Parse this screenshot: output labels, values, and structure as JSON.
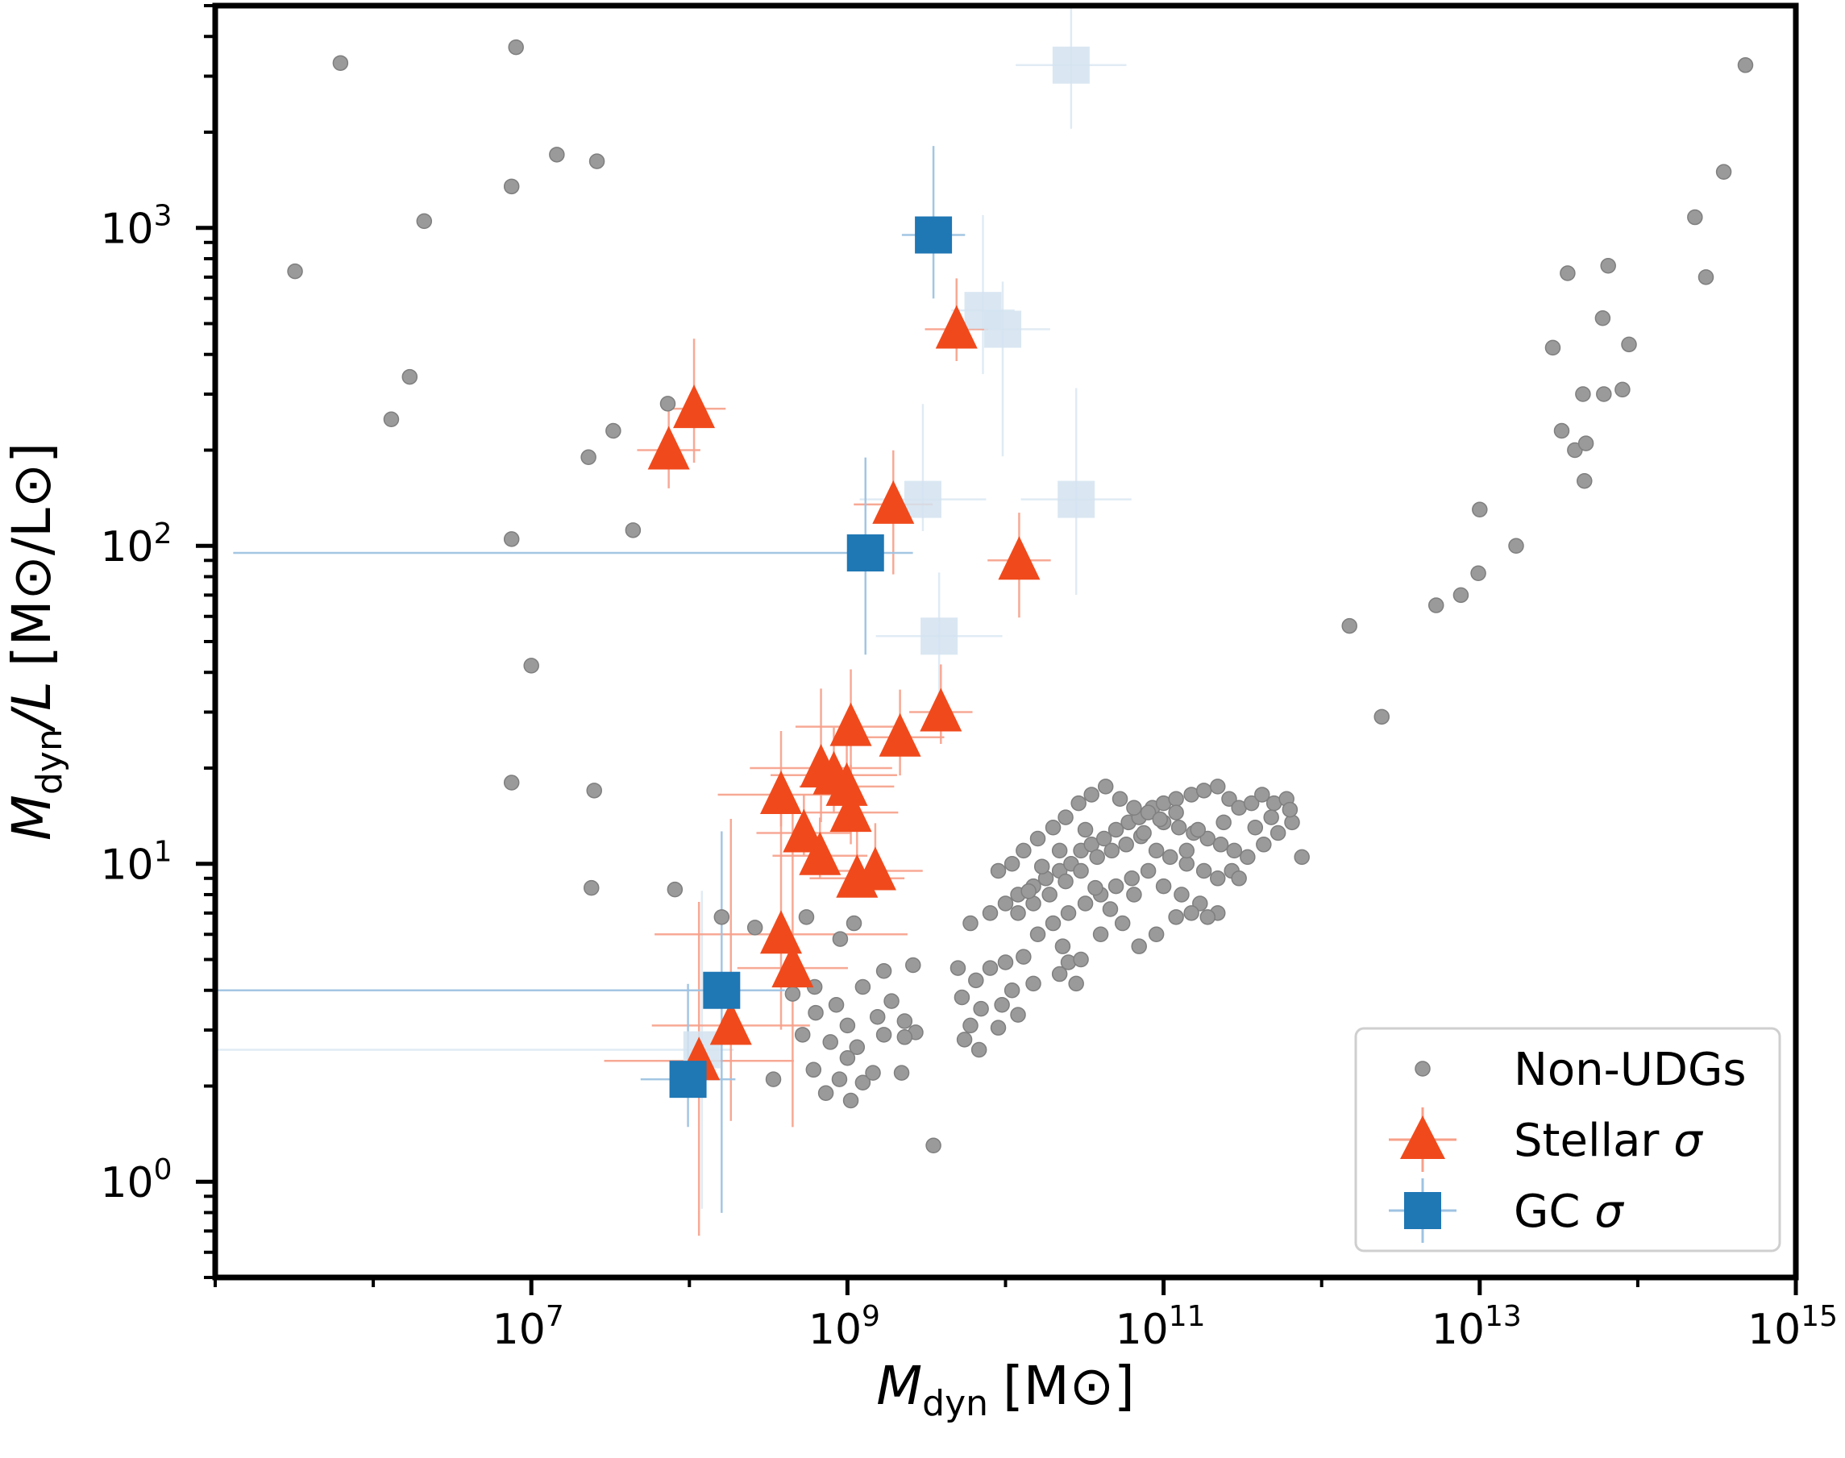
{
  "chart_data": {
    "type": "scatter",
    "xlabel_main": "M",
    "xlabel_sub": "dyn",
    "xlabel_unit": "[M",
    "xlabel_sun": "⊙",
    "xlabel_close": "]",
    "ylabel_main": "M",
    "ylabel_sub": "dyn",
    "ylabel_slash_l": "/L",
    "ylabel_unit": "[M",
    "ylabel_sun1": "⊙",
    "ylabel_mid": "/L",
    "ylabel_sun2": "⊙",
    "ylabel_close": "]",
    "x_scale": "log",
    "y_scale": "log",
    "xlim": [
      100000.0,
      1000000000000000.0
    ],
    "ylim": [
      0.5,
      5000
    ],
    "x_ticks": [
      {
        "value": 10000000.0,
        "base": "10",
        "exp": "7"
      },
      {
        "value": 1000000000.0,
        "base": "10",
        "exp": "9"
      },
      {
        "value": 100000000000.0,
        "base": "10",
        "exp": "11"
      },
      {
        "value": 10000000000000.0,
        "base": "10",
        "exp": "13"
      },
      {
        "value": 1000000000000000.0,
        "base": "10",
        "exp": "15"
      }
    ],
    "y_ticks": [
      {
        "value": 1,
        "base": "10",
        "exp": "0"
      },
      {
        "value": 10,
        "base": "10",
        "exp": "1"
      },
      {
        "value": 100,
        "base": "10",
        "exp": "2"
      },
      {
        "value": 1000,
        "base": "10",
        "exp": "3"
      }
    ],
    "legend_position": "bottom-right",
    "grid": false,
    "colors": {
      "non_udg": "#9a9a9a",
      "stellar": "#f04a1c",
      "stellar_err": "#f7a08a",
      "gc": "#1f77b4",
      "gc_err": "#9fc3e2",
      "gc_faint": "#d4e3f0"
    },
    "series": [
      {
        "name": "Non-UDGs",
        "marker": "circle",
        "points": [
          [
            320000.0,
            730
          ],
          [
            620000.0,
            3300
          ],
          [
            2100000.0,
            1050
          ],
          [
            1300000.0,
            250
          ],
          [
            1700000.0,
            340
          ],
          [
            7500000.0,
            1350
          ],
          [
            8000000.0,
            3700
          ],
          [
            14500000.0,
            1700
          ],
          [
            26000000.0,
            1620
          ],
          [
            23000000.0,
            190
          ],
          [
            33000000.0,
            230
          ],
          [
            44000000.0,
            112
          ],
          [
            73000000.0,
            280
          ],
          [
            7500000.0,
            105
          ],
          [
            10000000.0,
            42
          ],
          [
            7500000.0,
            18
          ],
          [
            25000000.0,
            17
          ],
          [
            24000000.0,
            8.4
          ],
          [
            81000000.0,
            8.3
          ],
          [
            160000000.0,
            6.8
          ],
          [
            260000000.0,
            6.3
          ],
          [
            550000000.0,
            6.8
          ],
          [
            900000000.0,
            5.8
          ],
          [
            1100000000.0,
            6.5
          ],
          [
            1700000000.0,
            4.6
          ],
          [
            2600000000.0,
            4.8
          ],
          [
            450000000.0,
            3.9
          ],
          [
            620000000.0,
            4.1
          ],
          [
            850000000.0,
            3.6
          ],
          [
            1250000000.0,
            4.1
          ],
          [
            1900000000.0,
            3.7
          ],
          [
            2300000000.0,
            3.2
          ],
          [
            630000000.0,
            3.4
          ],
          [
            1000000000.0,
            3.1
          ],
          [
            1550000000.0,
            3.3
          ],
          [
            2700000000.0,
            2.95
          ],
          [
            520000000.0,
            2.9
          ],
          [
            780000000.0,
            2.75
          ],
          [
            1150000000.0,
            2.65
          ],
          [
            1700000000.0,
            2.9
          ],
          [
            2300000000.0,
            2.85
          ],
          [
            340000000.0,
            2.1
          ],
          [
            610000000.0,
            2.25
          ],
          [
            890000000.0,
            2.1
          ],
          [
            1250000000.0,
            2.05
          ],
          [
            2200000000.0,
            2.2
          ],
          [
            730000000.0,
            1.9
          ],
          [
            1050000000.0,
            1.8
          ],
          [
            1450000000.0,
            2.2
          ],
          [
            1000000000.0,
            2.45
          ],
          [
            3500000000.0,
            1.3
          ],
          [
            5000000000.0,
            4.7
          ],
          [
            6500000000.0,
            4.3
          ],
          [
            8000000000.0,
            4.7
          ],
          [
            10000000000.0,
            4.9
          ],
          [
            13000000000.0,
            5.1
          ],
          [
            5300000000.0,
            3.8
          ],
          [
            7000000000.0,
            3.5
          ],
          [
            9500000000.0,
            3.6
          ],
          [
            11000000000.0,
            4
          ],
          [
            15000000000.0,
            4.2
          ],
          [
            6000000000.0,
            3.1
          ],
          [
            9000000000.0,
            3.05
          ],
          [
            12000000000.0,
            3.35
          ],
          [
            5500000000.0,
            2.8
          ],
          [
            6800000000.0,
            2.6
          ],
          [
            22000000000.0,
            4.5
          ],
          [
            25000000000.0,
            4.9
          ],
          [
            28000000000.0,
            4.2
          ],
          [
            6000000000.0,
            6.5
          ],
          [
            8000000000.0,
            7
          ],
          [
            10000000000.0,
            7.5
          ],
          [
            12000000000.0,
            8
          ],
          [
            15000000000.0,
            8.5
          ],
          [
            18000000000.0,
            9
          ],
          [
            22000000000.0,
            9.5
          ],
          [
            26000000000.0,
            10
          ],
          [
            30000000000.0,
            11
          ],
          [
            35000000000.0,
            11.5
          ],
          [
            42000000000.0,
            12
          ],
          [
            50000000000.0,
            12.8
          ],
          [
            60000000000.0,
            13.5
          ],
          [
            70000000000.0,
            14
          ],
          [
            85000000000.0,
            15
          ],
          [
            100000000000.0,
            15.5
          ],
          [
            120000000000.0,
            16
          ],
          [
            150000000000.0,
            16.5
          ],
          [
            180000000000.0,
            17
          ],
          [
            220000000000.0,
            17.5
          ],
          [
            260000000000.0,
            16
          ],
          [
            300000000000.0,
            15
          ],
          [
            360000000000.0,
            15.5
          ],
          [
            420000000000.0,
            16.5
          ],
          [
            500000000000.0,
            15.5
          ],
          [
            600000000000.0,
            16
          ],
          [
            9000000000.0,
            9.5
          ],
          [
            11000000000.0,
            10
          ],
          [
            13000000000.0,
            11
          ],
          [
            16000000000.0,
            12
          ],
          [
            20000000000.0,
            13
          ],
          [
            24000000000.0,
            14
          ],
          [
            29000000000.0,
            15.5
          ],
          [
            35000000000.0,
            16.5
          ],
          [
            43000000000.0,
            17.5
          ],
          [
            53000000000.0,
            16
          ],
          [
            65000000000.0,
            15
          ],
          [
            80000000000.0,
            14.5
          ],
          [
            100000000000.0,
            13.5
          ],
          [
            125000000000.0,
            13
          ],
          [
            155000000000.0,
            12.5
          ],
          [
            190000000000.0,
            12
          ],
          [
            230000000000.0,
            11.5
          ],
          [
            280000000000.0,
            11
          ],
          [
            340000000000.0,
            10.5
          ],
          [
            430000000000.0,
            11.5
          ],
          [
            530000000000.0,
            12.5
          ],
          [
            650000000000.0,
            13.5
          ],
          [
            750000000000.0,
            10.5
          ],
          [
            12000000000.0,
            7
          ],
          [
            15000000000.0,
            7.5
          ],
          [
            19000000000.0,
            8
          ],
          [
            24000000000.0,
            8.8
          ],
          [
            30000000000.0,
            9.5
          ],
          [
            38000000000.0,
            10.5
          ],
          [
            47000000000.0,
            11
          ],
          [
            58000000000.0,
            11.5
          ],
          [
            72000000000.0,
            12.2
          ],
          [
            90000000000.0,
            11
          ],
          [
            110000000000.0,
            10.5
          ],
          [
            140000000000.0,
            10
          ],
          [
            180000000000.0,
            9.5
          ],
          [
            220000000000.0,
            9
          ],
          [
            270000000000.0,
            9.5
          ],
          [
            16000000000.0,
            6
          ],
          [
            20000000000.0,
            6.5
          ],
          [
            25000000000.0,
            7
          ],
          [
            32000000000.0,
            7.5
          ],
          [
            40000000000.0,
            8
          ],
          [
            50000000000.0,
            8.5
          ],
          [
            63000000000.0,
            9
          ],
          [
            80000000000.0,
            9.5
          ],
          [
            100000000000.0,
            8.5
          ],
          [
            130000000000.0,
            8
          ],
          [
            170000000000.0,
            7.5
          ],
          [
            220000000000.0,
            7
          ],
          [
            300000000000.0,
            9
          ],
          [
            23000000000.0,
            5.5
          ],
          [
            30000000000.0,
            5
          ],
          [
            40000000000.0,
            6
          ],
          [
            55000000000.0,
            6.5
          ],
          [
            70000000000.0,
            5.5
          ],
          [
            90000000000.0,
            6
          ],
          [
            120000000000.0,
            6.8
          ],
          [
            150000000000.0,
            7
          ],
          [
            190000000000.0,
            6.8
          ],
          [
            32000000000.0,
            12.8
          ],
          [
            22000000000.0,
            11
          ],
          [
            17000000000.0,
            9.8
          ],
          [
            14000000000.0,
            8.2
          ],
          [
            75000000000.0,
            12.5
          ],
          [
            95000000000.0,
            13.8
          ],
          [
            120000000000.0,
            14.5
          ],
          [
            480000000000.0,
            14
          ],
          [
            630000000000.0,
            14.8
          ],
          [
            37000000000.0,
            8.4
          ],
          [
            46000000000.0,
            7.2
          ],
          [
            65000000000.0,
            8
          ],
          [
            140000000000.0,
            11
          ],
          [
            165000000000.0,
            12.8
          ],
          [
            240000000000.0,
            13.5
          ],
          [
            380000000000.0,
            13
          ],
          [
            1500000000000.0,
            56
          ],
          [
            2400000000000.0,
            29
          ],
          [
            5300000000000.0,
            65
          ],
          [
            7600000000000.0,
            70
          ],
          [
            9800000000000.0,
            82
          ],
          [
            10000000000000.0,
            130
          ],
          [
            17000000000000.0,
            100
          ],
          [
            29000000000000.0,
            420
          ],
          [
            33000000000000.0,
            230
          ],
          [
            36000000000000.0,
            720
          ],
          [
            40000000000000.0,
            200
          ],
          [
            46000000000000.0,
            160
          ],
          [
            45000000000000.0,
            300
          ],
          [
            47000000000000.0,
            210
          ],
          [
            60000000000000.0,
            520
          ],
          [
            61000000000000.0,
            300
          ],
          [
            65000000000000.0,
            760
          ],
          [
            80000000000000.0,
            310
          ],
          [
            88000000000000.0,
            430
          ],
          [
            230000000000000.0,
            1080
          ],
          [
            270000000000000.0,
            700
          ],
          [
            350000000000000.0,
            1500
          ],
          [
            480000000000000.0,
            3250
          ]
        ]
      },
      {
        "name": "Stellar σ",
        "marker": "triangle",
        "points": [
          [
            107000000.0,
            270,
            0.2,
            0.2,
            0.17,
            0.22
          ],
          [
            74000000.0,
            200,
            0.2,
            0.2,
            0.12,
            0.14
          ],
          [
            4900000000.0,
            480,
            0.2,
            0.2,
            0.1,
            0.16
          ],
          [
            1950000000.0,
            135,
            0.25,
            0.25,
            0.22,
            0.17
          ],
          [
            12200000000.0,
            90,
            0.2,
            0.2,
            0.18,
            0.15
          ],
          [
            1050000000.0,
            27,
            0.35,
            0.35,
            0.15,
            0.18
          ],
          [
            2150000000.0,
            25,
            0.28,
            0.28,
            0.12,
            0.15
          ],
          [
            3900000000.0,
            30,
            0.2,
            0.2,
            0.1,
            0.15
          ],
          [
            680000000.0,
            20,
            0.45,
            0.45,
            0.17,
            0.25
          ],
          [
            820000000.0,
            19,
            0.4,
            0.4,
            0.12,
            0.15
          ],
          [
            380000000.0,
            16.5,
            0.4,
            0.4,
            0.1,
            0.2
          ],
          [
            990000000.0,
            17.5,
            0.3,
            0.3,
            0.08,
            0.15
          ],
          [
            1050000000.0,
            14.5,
            0.3,
            0.3,
            0.1,
            0.15
          ],
          [
            530000000.0,
            12.5,
            0.3,
            0.3,
            0.07,
            0.12
          ],
          [
            670000000.0,
            10.6,
            0.3,
            0.3,
            0.07,
            0.12
          ],
          [
            1150000000.0,
            9,
            0.3,
            0.3,
            0.05,
            0.2
          ],
          [
            1500000000.0,
            9.5,
            0.3,
            0.3,
            0.05,
            0.15
          ],
          [
            380000000.0,
            6,
            0.8,
            0.8,
            0.3,
            0.5
          ],
          [
            450000000.0,
            4.7,
            0.35,
            0.35,
            0.5,
            0.5
          ],
          [
            183000000.0,
            3.1,
            0.5,
            0.5,
            0.3,
            0.65
          ],
          [
            115000000.0,
            2.4,
            0.6,
            0.6,
            0.55,
            0.5
          ]
        ]
      },
      {
        "name": "GC σ",
        "marker": "square",
        "points": [
          [
            3500000000.0,
            950,
            0.2,
            0.2,
            0.2,
            0.28,
            1
          ],
          [
            1300000000.0,
            95,
            4,
            0.3,
            0.32,
            0.3,
            1
          ],
          [
            160000000.0,
            4,
            4,
            0.4,
            0.7,
            0.5,
            1
          ],
          [
            98000000.0,
            2.1,
            0.3,
            0.3,
            0.15,
            0.3,
            1
          ],
          [
            26000000000.0,
            3250,
            0.35,
            0.35,
            0.2,
            0.35,
            0
          ],
          [
            7200000000.0,
            550,
            0.2,
            0.2,
            0.2,
            0.3,
            0
          ],
          [
            9600000000.0,
            480,
            0.3,
            0.3,
            0.4,
            0.15,
            0
          ],
          [
            3000000000.0,
            140,
            0.4,
            0.4,
            0.1,
            0.3,
            0
          ],
          [
            28000000000.0,
            140,
            0.35,
            0.35,
            0.3,
            0.35,
            0
          ],
          [
            3800000000.0,
            52,
            0.4,
            0.4,
            0.2,
            0.2,
            0
          ],
          [
            120000000.0,
            2.6,
            3.8,
            0.2,
            0.5,
            0.5,
            0
          ]
        ]
      }
    ]
  }
}
